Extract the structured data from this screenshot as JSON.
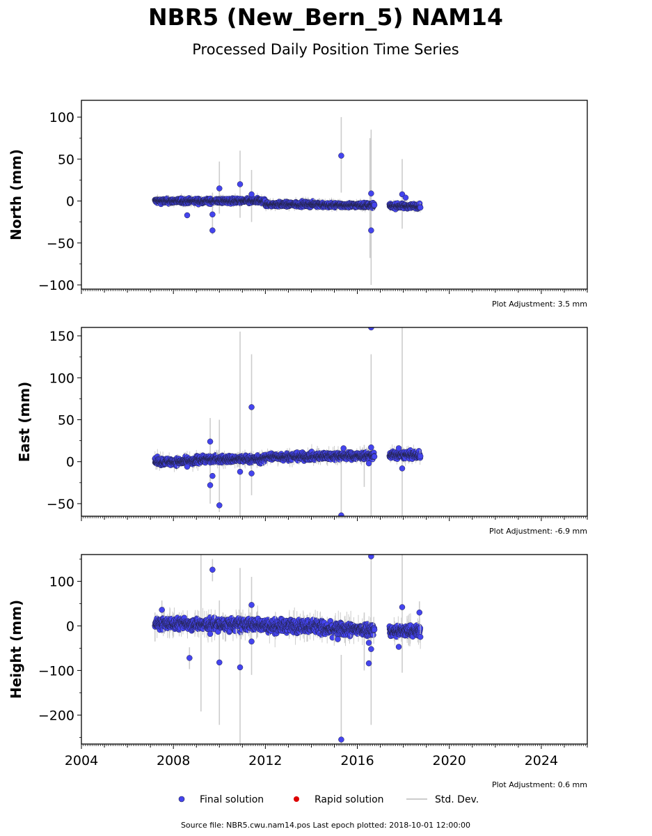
{
  "title": "NBR5 (New_Bern_5) NAM14",
  "subtitle": "Processed Daily Position Time Series",
  "legend": {
    "final": "Final solution",
    "rapid": "Rapid solution",
    "stddev": "Std. Dev."
  },
  "footer": "Source file: NBR5.cwu.nam14.pos  Last epoch plotted: 2018-10-01 12:00:00",
  "colors": {
    "final": "#4444ee",
    "rapid": "#dd0000",
    "stddev": "#cccccc",
    "edge": "#222244"
  },
  "chart_data": [
    {
      "type": "scatter",
      "ylabel": "North (mm)",
      "adjustment": "Plot Adjustment: 3.5 mm",
      "xlim": [
        2004,
        2026
      ],
      "ylim": [
        -105,
        120
      ],
      "yticks": [
        -100,
        -50,
        0,
        50,
        100
      ],
      "ytick_labels": [
        "−100",
        "−50",
        "0",
        "50",
        "100"
      ],
      "baseline": {
        "segments": [
          [
            2007.2,
            2009.0,
            0,
            2
          ],
          [
            2009.0,
            2012.0,
            0,
            2
          ],
          [
            2012.0,
            2014.5,
            -4,
            2
          ],
          [
            2014.5,
            2016.75,
            -5,
            2
          ],
          [
            2017.4,
            2018.75,
            -6,
            2
          ]
        ]
      },
      "outliers": [
        {
          "x": 2008.6,
          "y": -17
        },
        {
          "x": 2009.7,
          "y": -16
        },
        {
          "x": 2009.7,
          "y": -35
        },
        {
          "x": 2010.0,
          "y": 15
        },
        {
          "x": 2010.9,
          "y": 20
        },
        {
          "x": 2011.4,
          "y": 8
        },
        {
          "x": 2015.3,
          "y": 54
        },
        {
          "x": 2016.6,
          "y": 9
        },
        {
          "x": 2016.6,
          "y": -35
        },
        {
          "x": 2017.95,
          "y": 8
        },
        {
          "x": 2018.1,
          "y": 4
        }
      ],
      "errorbars": [
        {
          "x": 2009.7,
          "lo": -40,
          "hi": 10
        },
        {
          "x": 2010.0,
          "lo": -15,
          "hi": 47
        },
        {
          "x": 2010.9,
          "lo": -20,
          "hi": 60
        },
        {
          "x": 2011.4,
          "lo": -25,
          "hi": 37
        },
        {
          "x": 2015.3,
          "lo": 10,
          "hi": 100
        },
        {
          "x": 2016.6,
          "lo": -100,
          "hi": 85
        },
        {
          "x": 2016.55,
          "lo": -68,
          "hi": 75
        },
        {
          "x": 2017.95,
          "lo": -33,
          "hi": 50
        }
      ]
    },
    {
      "type": "scatter",
      "ylabel": "East (mm)",
      "adjustment": "Plot Adjustment: -6.9 mm",
      "xlim": [
        2004,
        2026
      ],
      "ylim": [
        -65,
        160
      ],
      "yticks": [
        -50,
        0,
        50,
        100,
        150
      ],
      "ytick_labels": [
        "−50",
        "0",
        "50",
        "100",
        "150"
      ],
      "baseline": {
        "segments": [
          [
            2007.2,
            2009.0,
            0,
            3
          ],
          [
            2009.0,
            2012.0,
            3,
            3
          ],
          [
            2012.0,
            2014.5,
            6,
            3
          ],
          [
            2014.5,
            2016.75,
            7,
            3
          ],
          [
            2017.4,
            2018.75,
            8,
            3
          ]
        ]
      },
      "outliers": [
        {
          "x": 2008.6,
          "y": -6
        },
        {
          "x": 2009.6,
          "y": 24
        },
        {
          "x": 2009.6,
          "y": -28
        },
        {
          "x": 2009.7,
          "y": -17
        },
        {
          "x": 2010.0,
          "y": -52
        },
        {
          "x": 2010.9,
          "y": -12
        },
        {
          "x": 2011.4,
          "y": 65
        },
        {
          "x": 2011.4,
          "y": -14
        },
        {
          "x": 2015.3,
          "y": -64
        },
        {
          "x": 2015.4,
          "y": 16
        },
        {
          "x": 2016.6,
          "y": 160
        },
        {
          "x": 2016.6,
          "y": 17
        },
        {
          "x": 2016.5,
          "y": -2
        },
        {
          "x": 2017.8,
          "y": 16
        },
        {
          "x": 2017.95,
          "y": -8
        }
      ],
      "errorbars": [
        {
          "x": 2009.6,
          "lo": -50,
          "hi": 52
        },
        {
          "x": 2010.0,
          "lo": -60,
          "hi": 50
        },
        {
          "x": 2010.9,
          "lo": -65,
          "hi": 155
        },
        {
          "x": 2011.4,
          "lo": -40,
          "hi": 128
        },
        {
          "x": 2015.3,
          "lo": -65,
          "hi": 10
        },
        {
          "x": 2016.6,
          "lo": -65,
          "hi": 128
        },
        {
          "x": 2016.3,
          "lo": -30,
          "hi": 20
        },
        {
          "x": 2017.95,
          "lo": -65,
          "hi": 160
        }
      ]
    },
    {
      "type": "scatter",
      "ylabel": "Height (mm)",
      "adjustment": "Plot Adjustment: 0.6 mm",
      "xlim": [
        2004,
        2026
      ],
      "ylim": [
        -265,
        160
      ],
      "yticks": [
        -200,
        -100,
        0,
        100
      ],
      "ytick_labels": [
        "−200",
        "−100",
        "0",
        "100"
      ],
      "xticks": [
        2004,
        2008,
        2012,
        2016,
        2020,
        2024
      ],
      "xtick_labels": [
        "2004",
        "2008",
        "2012",
        "2016",
        "2020",
        "2024"
      ],
      "baseline": {
        "segments": [
          [
            2007.2,
            2009.0,
            5,
            9
          ],
          [
            2009.0,
            2012.0,
            3,
            10
          ],
          [
            2012.0,
            2014.5,
            0,
            10
          ],
          [
            2014.5,
            2016.75,
            -8,
            10
          ],
          [
            2017.4,
            2018.75,
            -12,
            9
          ]
        ]
      },
      "outliers": [
        {
          "x": 2007.5,
          "y": 36
        },
        {
          "x": 2008.7,
          "y": -72
        },
        {
          "x": 2009.7,
          "y": 126
        },
        {
          "x": 2009.6,
          "y": -18
        },
        {
          "x": 2010.0,
          "y": -82
        },
        {
          "x": 2010.9,
          "y": -93
        },
        {
          "x": 2011.4,
          "y": 47
        },
        {
          "x": 2011.4,
          "y": -35
        },
        {
          "x": 2015.3,
          "y": -255
        },
        {
          "x": 2015.15,
          "y": -30
        },
        {
          "x": 2016.6,
          "y": 156
        },
        {
          "x": 2016.6,
          "y": -52
        },
        {
          "x": 2016.5,
          "y": -84
        },
        {
          "x": 2016.5,
          "y": -38
        },
        {
          "x": 2017.8,
          "y": -47
        },
        {
          "x": 2017.95,
          "y": 42
        },
        {
          "x": 2018.7,
          "y": 30
        }
      ],
      "errorbars": [
        {
          "x": 2007.2,
          "lo": -35,
          "hi": 30
        },
        {
          "x": 2007.5,
          "lo": 15,
          "hi": 57
        },
        {
          "x": 2008.7,
          "lo": -97,
          "hi": -48
        },
        {
          "x": 2009.2,
          "lo": -192,
          "hi": 160
        },
        {
          "x": 2009.7,
          "lo": 100,
          "hi": 150
        },
        {
          "x": 2010.0,
          "lo": -222,
          "hi": 57
        },
        {
          "x": 2010.9,
          "lo": -265,
          "hi": 130
        },
        {
          "x": 2011.4,
          "lo": -110,
          "hi": 110
        },
        {
          "x": 2015.3,
          "lo": -265,
          "hi": -65
        },
        {
          "x": 2016.6,
          "lo": -222,
          "hi": 160
        },
        {
          "x": 2016.3,
          "lo": -100,
          "hi": 30
        },
        {
          "x": 2017.95,
          "lo": -105,
          "hi": 160
        },
        {
          "x": 2018.7,
          "lo": -10,
          "hi": 55
        }
      ]
    }
  ]
}
